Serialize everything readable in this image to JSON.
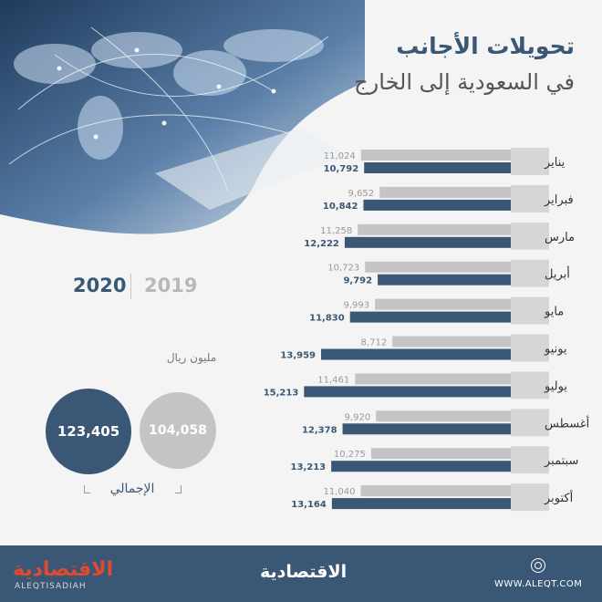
{
  "header": {
    "title": "تحويلات الأجانب",
    "subtitle": "في السعودية إلى الخارج"
  },
  "legend": {
    "year_2020": "2020",
    "year_2019": "2019"
  },
  "totals": {
    "unit": "مليون ريال",
    "value_2020": "123,405",
    "value_2019": "104,058",
    "label": "الإجمالي"
  },
  "colors": {
    "primary": "#3a5875",
    "secondary": "#c4c4c4",
    "label_bg": "#d6d6d6"
  },
  "chart_data": {
    "type": "bar",
    "orientation": "horizontal",
    "categories": [
      "يناير",
      "فبراير",
      "مارس",
      "أبريل",
      "مايو",
      "يونيو",
      "يوليو",
      "أغسطس",
      "سبتمبر",
      "أكتوبر"
    ],
    "series": [
      {
        "name": "2019",
        "values": [
          11024,
          9652,
          11258,
          10723,
          9993,
          8712,
          11461,
          9920,
          10275,
          11040
        ]
      },
      {
        "name": "2020",
        "values": [
          10792,
          10842,
          12222,
          9792,
          11830,
          13959,
          15213,
          12378,
          13213,
          13164
        ]
      }
    ],
    "value_labels": {
      "2019": [
        "11,024",
        "9,652",
        "11,258",
        "10,723",
        "9,993",
        "8,712",
        "11,461",
        "9,920",
        "10,275",
        "11,040"
      ],
      "2020": [
        "10,792",
        "10,842",
        "12,222",
        "9,792",
        "11,830",
        "13,959",
        "15,213",
        "12,378",
        "13,213",
        "13,164"
      ]
    },
    "xlim": [
      0,
      16000
    ],
    "legend_placement": "left"
  },
  "footer": {
    "logo_left": "الاقتصادية",
    "logo_left_sub": "ALEQTISADIAH",
    "logo_center": "الاقتصادية",
    "url": "WWW.ALEQT.COM"
  }
}
